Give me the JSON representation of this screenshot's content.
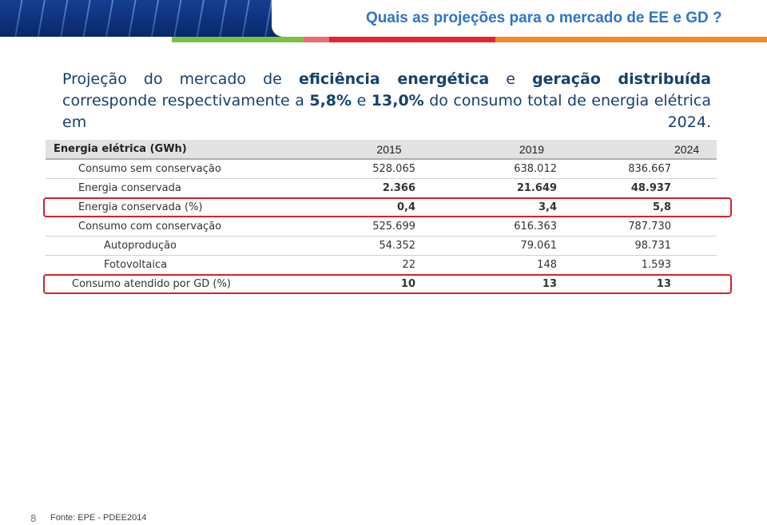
{
  "header": {
    "title": "Quais as projeções para o mercado de EE e GD ?"
  },
  "body": {
    "segments": [
      {
        "text": "Projeção do mercado de ",
        "bold": false
      },
      {
        "text": "eficiência energética",
        "bold": true
      },
      {
        "text": " e ",
        "bold": false
      },
      {
        "text": "geração distribuída",
        "bold": true
      },
      {
        "text": " corresponde respectivamente a ",
        "bold": false
      },
      {
        "text": "5,8%",
        "bold": true
      },
      {
        "text": " e ",
        "bold": false
      },
      {
        "text": "13,0%",
        "bold": true
      },
      {
        "text": " do consumo total de energia elétrica em 2024.",
        "bold": false
      }
    ]
  },
  "table": {
    "header": [
      "Energia elétrica (GWh)",
      "2015",
      "2019",
      "2024"
    ],
    "rows": [
      [
        "Consumo sem conservação",
        "528.065",
        "638.012",
        "836.667"
      ],
      [
        "Energia conservada",
        "2.366",
        "21.649",
        "48.937"
      ],
      [
        "Energia conservada (%)",
        "0,4",
        "3,4",
        "5,8"
      ],
      [
        "Consumo com conservação",
        "525.699",
        "616.363",
        "787.730"
      ],
      [
        "Autoprodução",
        "54.352",
        "79.061",
        "98.731"
      ],
      [
        "Fotovoltaica",
        "22",
        "148",
        "1.593"
      ],
      [
        "Consumo atendido por GD (%)",
        "10",
        "13",
        "13"
      ]
    ]
  },
  "footer": {
    "page": "8",
    "source": "Fonte: EPE - PDEE2014"
  }
}
